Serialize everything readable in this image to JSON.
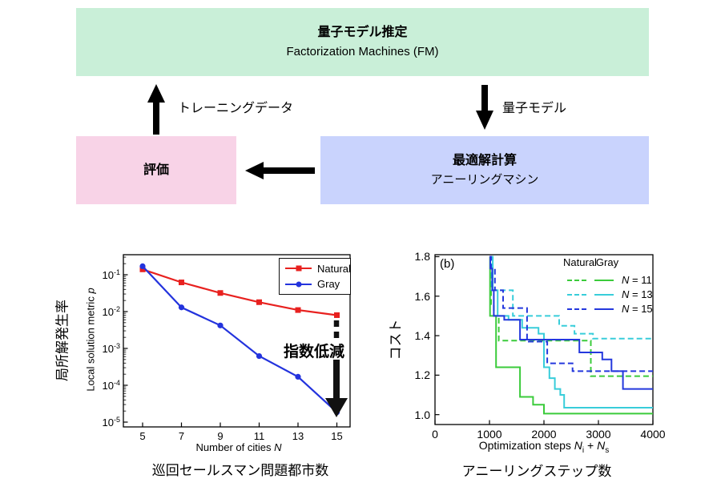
{
  "diagram": {
    "fm_box": {
      "title": "量子モデル推定",
      "subtitle": "Factorization Machines (FM)",
      "bg": "#c9efd8"
    },
    "eval_box": {
      "title": "評価",
      "bg": "#f8d3e7"
    },
    "optim_box": {
      "title": "最適解計算",
      "subtitle": "アニーリングマシン",
      "bg": "#c9d3fd"
    },
    "training_label": "トレーニングデータ",
    "model_label": "量子モデル",
    "arrow_color": "#000000"
  },
  "chart_data": [
    {
      "type": "line",
      "xlabel_prefix": "Number of cities ",
      "xlabel_var": "N",
      "ylabel_prefix": "Local solution metric ",
      "ylabel_var": "p",
      "ylabel_outer": "局所解発生率",
      "yscale": "log",
      "grid": false,
      "legend_position": "top-right",
      "xticks": [
        5,
        7,
        9,
        11,
        13,
        15
      ],
      "ytick_exponents": [
        -1,
        -2,
        -3,
        -4,
        -5
      ],
      "x": [
        5,
        7,
        9,
        11,
        13,
        15
      ],
      "series": [
        {
          "name": "Natural",
          "color": "#e8211f",
          "marker": "square",
          "values": [
            0.14,
            0.062,
            0.032,
            0.018,
            0.011,
            0.008
          ]
        },
        {
          "name": "Gray",
          "color": "#2333dd",
          "marker": "circle",
          "values": [
            0.17,
            0.013,
            0.0042,
            0.00062,
            0.00017,
            1.85e-05
          ]
        }
      ],
      "annotation": "指数低減",
      "caption": "巡回セールスマン問題都市数"
    },
    {
      "type": "step-line",
      "panel_label": "(b)",
      "xlabel_prefix": "Optimization steps ",
      "xlabel_var1": "N",
      "xlabel_sub1": "i",
      "xlabel_mid": " + ",
      "xlabel_var2": "N",
      "xlabel_sub2": "s",
      "ylabel": "コスト",
      "grid": false,
      "xlim": [
        0,
        4000
      ],
      "ylim": [
        0.95,
        1.81
      ],
      "xticks": [
        0,
        1000,
        2000,
        3000,
        4000
      ],
      "yticks": [
        1.0,
        1.2,
        1.4,
        1.6,
        1.8
      ],
      "legend_headers": [
        "Natural",
        "Gray"
      ],
      "legend_rows": [
        {
          "var": "N",
          "rest": " = 11",
          "color": "#3bcb3b"
        },
        {
          "var": "N",
          "rest": " = 13",
          "color": "#38cdda"
        },
        {
          "var": "N",
          "rest": " = 15",
          "color": "#2438dd"
        }
      ],
      "series": [
        {
          "name": "Natural N = 11",
          "color": "#3bcb3b",
          "dash": true,
          "points": [
            [
              1000,
              1.8
            ],
            [
              1030,
              1.56
            ],
            [
              1080,
              1.5
            ],
            [
              1170,
              1.375
            ],
            [
              2860,
              1.195
            ],
            [
              4000,
              1.195
            ]
          ]
        },
        {
          "name": "Gray N = 11",
          "color": "#3bcb3b",
          "dash": false,
          "points": [
            [
              1000,
              1.8
            ],
            [
              1010,
              1.5
            ],
            [
              1120,
              1.24
            ],
            [
              1560,
              1.09
            ],
            [
              1800,
              1.05
            ],
            [
              2000,
              1.005
            ],
            [
              4000,
              1.005
            ]
          ]
        },
        {
          "name": "Natural N = 13",
          "color": "#38cdda",
          "dash": true,
          "points": [
            [
              1000,
              1.8
            ],
            [
              1040,
              1.63
            ],
            [
              1430,
              1.5
            ],
            [
              2280,
              1.45
            ],
            [
              2560,
              1.41
            ],
            [
              2900,
              1.385
            ],
            [
              4000,
              1.385
            ]
          ]
        },
        {
          "name": "Gray N = 13",
          "color": "#38cdda",
          "dash": false,
          "points": [
            [
              1000,
              1.8
            ],
            [
              1060,
              1.63
            ],
            [
              1150,
              1.5
            ],
            [
              1350,
              1.48
            ],
            [
              1600,
              1.44
            ],
            [
              1900,
              1.41
            ],
            [
              2000,
              1.24
            ],
            [
              2100,
              1.185
            ],
            [
              2200,
              1.13
            ],
            [
              2300,
              1.1
            ],
            [
              2370,
              1.035
            ],
            [
              4000,
              1.035
            ]
          ]
        },
        {
          "name": "Natural N = 15",
          "color": "#2438dd",
          "dash": true,
          "points": [
            [
              1000,
              1.8
            ],
            [
              1030,
              1.74
            ],
            [
              1100,
              1.63
            ],
            [
              1250,
              1.54
            ],
            [
              1690,
              1.37
            ],
            [
              2060,
              1.26
            ],
            [
              2525,
              1.22
            ],
            [
              4000,
              1.22
            ]
          ]
        },
        {
          "name": "Gray N = 15",
          "color": "#2438dd",
          "dash": false,
          "points": [
            [
              1000,
              1.8
            ],
            [
              1015,
              1.74
            ],
            [
              1050,
              1.63
            ],
            [
              1080,
              1.5
            ],
            [
              1270,
              1.48
            ],
            [
              1560,
              1.38
            ],
            [
              2650,
              1.315
            ],
            [
              3070,
              1.28
            ],
            [
              3240,
              1.22
            ],
            [
              3450,
              1.13
            ],
            [
              4000,
              1.13
            ]
          ]
        }
      ],
      "caption": "アニーリングステップ数"
    }
  ]
}
